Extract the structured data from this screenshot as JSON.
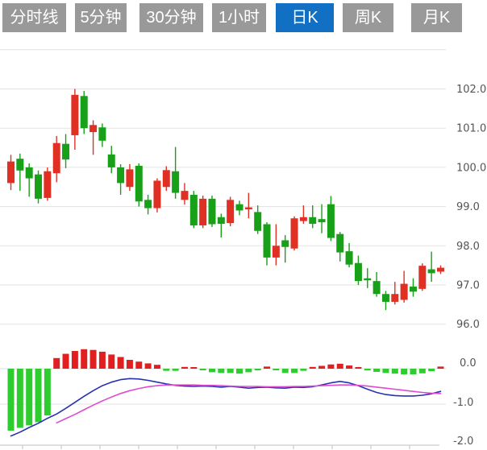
{
  "tabs": {
    "items": [
      {
        "key": "tab-timeline",
        "label": "分时线",
        "active": false
      },
      {
        "key": "tab-5min",
        "label": "5分钟",
        "active": false
      },
      {
        "key": "tab-30min",
        "label": "30分钟",
        "active": false
      },
      {
        "key": "tab-1hour",
        "label": "1小时",
        "active": false
      },
      {
        "key": "tab-daily",
        "label": "日K",
        "active": true
      },
      {
        "key": "tab-weekly",
        "label": "周K",
        "active": false
      },
      {
        "key": "tab-monthly",
        "label": "月K",
        "active": false
      }
    ]
  },
  "chart_data": {
    "type": "candlestick",
    "description": "Daily K-line price chart with MACD sub-panel",
    "price_axis": {
      "tick_labels": [
        "102.0",
        "101.0",
        "100.0",
        "99.0",
        "98.0",
        "97.0",
        "96.0"
      ],
      "tick_values": [
        102.0,
        101.0,
        100.0,
        99.0,
        98.0,
        97.0,
        96.0
      ],
      "gridline_values": [
        103.0,
        102.0,
        101.0,
        100.0,
        99.0,
        98.0,
        97.0,
        96.0
      ],
      "ylim": [
        95.8,
        103.0
      ],
      "label_side": "right",
      "grid": true
    },
    "colors": {
      "up": "#e03024",
      "down": "#18a018",
      "hist_up": "#e02020",
      "hist_down": "#2ecc2e",
      "dif_line": "#2632b0",
      "dea_line": "#de4bd3",
      "gridline": "#e3e3e3",
      "zero_line": "#dddddd",
      "axis_line": "#c0c0c0",
      "tab_bg": "#999999",
      "tab_active_bg": "#1170c4",
      "tab_text": "#ffffff",
      "axis_text": "#555555"
    },
    "candles": [
      {
        "o": 99.6,
        "h": 100.32,
        "l": 99.42,
        "c": 100.15
      },
      {
        "o": 100.22,
        "h": 100.35,
        "l": 99.4,
        "c": 99.92
      },
      {
        "o": 100.0,
        "h": 100.1,
        "l": 99.25,
        "c": 99.72
      },
      {
        "o": 99.82,
        "h": 99.92,
        "l": 99.08,
        "c": 99.2
      },
      {
        "o": 99.22,
        "h": 100.0,
        "l": 99.15,
        "c": 99.9
      },
      {
        "o": 99.85,
        "h": 100.8,
        "l": 99.62,
        "c": 100.62
      },
      {
        "o": 100.6,
        "h": 100.85,
        "l": 99.98,
        "c": 100.2
      },
      {
        "o": 100.82,
        "h": 102.0,
        "l": 100.45,
        "c": 101.85
      },
      {
        "o": 101.82,
        "h": 101.95,
        "l": 100.85,
        "c": 101.0
      },
      {
        "o": 100.9,
        "h": 101.2,
        "l": 100.32,
        "c": 101.08
      },
      {
        "o": 101.02,
        "h": 101.12,
        "l": 100.52,
        "c": 100.68
      },
      {
        "o": 100.33,
        "h": 100.55,
        "l": 99.85,
        "c": 100.0
      },
      {
        "o": 100.0,
        "h": 100.08,
        "l": 99.3,
        "c": 99.6
      },
      {
        "o": 99.5,
        "h": 100.08,
        "l": 99.4,
        "c": 99.95
      },
      {
        "o": 100.04,
        "h": 100.1,
        "l": 99.0,
        "c": 99.13
      },
      {
        "o": 99.17,
        "h": 99.3,
        "l": 98.8,
        "c": 98.96
      },
      {
        "o": 98.96,
        "h": 99.72,
        "l": 98.85,
        "c": 99.66
      },
      {
        "o": 99.5,
        "h": 100.03,
        "l": 99.4,
        "c": 99.93
      },
      {
        "o": 99.9,
        "h": 100.52,
        "l": 99.2,
        "c": 99.35
      },
      {
        "o": 99.17,
        "h": 99.6,
        "l": 99.05,
        "c": 99.4
      },
      {
        "o": 99.3,
        "h": 99.4,
        "l": 98.45,
        "c": 98.52
      },
      {
        "o": 98.52,
        "h": 99.28,
        "l": 98.45,
        "c": 99.2
      },
      {
        "o": 99.2,
        "h": 99.28,
        "l": 98.48,
        "c": 98.55
      },
      {
        "o": 98.73,
        "h": 98.82,
        "l": 98.21,
        "c": 98.56
      },
      {
        "o": 98.58,
        "h": 99.25,
        "l": 98.5,
        "c": 99.17
      },
      {
        "o": 99.06,
        "h": 99.15,
        "l": 98.78,
        "c": 98.9
      },
      {
        "o": 98.93,
        "h": 99.35,
        "l": 98.7,
        "c": 98.98
      },
      {
        "o": 98.86,
        "h": 99.03,
        "l": 98.3,
        "c": 98.38
      },
      {
        "o": 98.55,
        "h": 98.6,
        "l": 97.5,
        "c": 97.7
      },
      {
        "o": 97.7,
        "h": 98.55,
        "l": 97.5,
        "c": 98.0
      },
      {
        "o": 98.14,
        "h": 98.27,
        "l": 97.57,
        "c": 97.97
      },
      {
        "o": 97.93,
        "h": 98.75,
        "l": 97.88,
        "c": 98.7
      },
      {
        "o": 98.63,
        "h": 99.03,
        "l": 98.56,
        "c": 98.73
      },
      {
        "o": 98.73,
        "h": 99.03,
        "l": 98.45,
        "c": 98.56
      },
      {
        "o": 98.68,
        "h": 99.06,
        "l": 98.32,
        "c": 98.6
      },
      {
        "o": 99.06,
        "h": 99.27,
        "l": 98.12,
        "c": 98.2
      },
      {
        "o": 98.3,
        "h": 98.35,
        "l": 97.6,
        "c": 97.83
      },
      {
        "o": 97.86,
        "h": 98.07,
        "l": 97.45,
        "c": 97.52
      },
      {
        "o": 97.56,
        "h": 97.75,
        "l": 97.0,
        "c": 97.1
      },
      {
        "o": 97.17,
        "h": 97.43,
        "l": 96.92,
        "c": 97.12
      },
      {
        "o": 97.1,
        "h": 97.33,
        "l": 96.7,
        "c": 96.77
      },
      {
        "o": 96.77,
        "h": 96.85,
        "l": 96.36,
        "c": 96.57
      },
      {
        "o": 96.57,
        "h": 97.08,
        "l": 96.5,
        "c": 96.77
      },
      {
        "o": 96.62,
        "h": 97.36,
        "l": 96.55,
        "c": 97.03
      },
      {
        "o": 96.96,
        "h": 97.17,
        "l": 96.7,
        "c": 96.83
      },
      {
        "o": 96.9,
        "h": 97.55,
        "l": 96.85,
        "c": 97.49
      },
      {
        "o": 97.4,
        "h": 97.85,
        "l": 97.08,
        "c": 97.3
      },
      {
        "o": 97.34,
        "h": 97.5,
        "l": 97.28,
        "c": 97.44
      }
    ],
    "macd": {
      "axis_tick_labels": [
        "0.0",
        "-1.0",
        "-2.0"
      ],
      "axis_tick_values": [
        0.0,
        -1.0,
        -2.0
      ],
      "ylim": [
        -2.1,
        0.6
      ],
      "histogram": [
        -1.75,
        -1.67,
        -1.6,
        -1.51,
        -1.32,
        0.3,
        0.42,
        0.5,
        0.55,
        0.53,
        0.48,
        0.4,
        0.33,
        0.25,
        0.2,
        0.15,
        0.11,
        -0.06,
        -0.06,
        0.05,
        0.02,
        -0.03,
        -0.1,
        -0.12,
        -0.12,
        -0.14,
        -0.1,
        -0.03,
        0.06,
        -0.02,
        -0.12,
        -0.12,
        -0.06,
        0.05,
        0.08,
        0.12,
        0.14,
        0.09,
        0.04,
        -0.05,
        -0.09,
        -0.12,
        -0.14,
        -0.16,
        -0.16,
        -0.13,
        -0.07,
        0.06
      ],
      "dif": [
        -1.9,
        -1.79,
        -1.66,
        -1.54,
        -1.4,
        -1.28,
        -1.12,
        -0.95,
        -0.78,
        -0.62,
        -0.48,
        -0.38,
        -0.31,
        -0.28,
        -0.29,
        -0.33,
        -0.38,
        -0.43,
        -0.47,
        -0.49,
        -0.5,
        -0.49,
        -0.5,
        -0.52,
        -0.5,
        -0.52,
        -0.55,
        -0.53,
        -0.52,
        -0.54,
        -0.55,
        -0.52,
        -0.53,
        -0.51,
        -0.46,
        -0.4,
        -0.36,
        -0.4,
        -0.48,
        -0.58,
        -0.67,
        -0.73,
        -0.76,
        -0.77,
        -0.77,
        -0.75,
        -0.71,
        -0.64
      ],
      "dea": [
        null,
        null,
        null,
        null,
        null,
        -1.53,
        -1.41,
        -1.29,
        -1.16,
        -1.03,
        -0.91,
        -0.8,
        -0.7,
        -0.62,
        -0.56,
        -0.51,
        -0.48,
        -0.46,
        -0.46,
        -0.46,
        -0.46,
        -0.47,
        -0.47,
        -0.48,
        -0.49,
        -0.5,
        -0.5,
        -0.5,
        -0.51,
        -0.51,
        -0.51,
        -0.5,
        -0.5,
        -0.49,
        -0.48,
        -0.47,
        -0.46,
        -0.46,
        -0.47,
        -0.49,
        -0.52,
        -0.55,
        -0.58,
        -0.61,
        -0.64,
        -0.67,
        -0.69,
        -0.7
      ]
    }
  }
}
